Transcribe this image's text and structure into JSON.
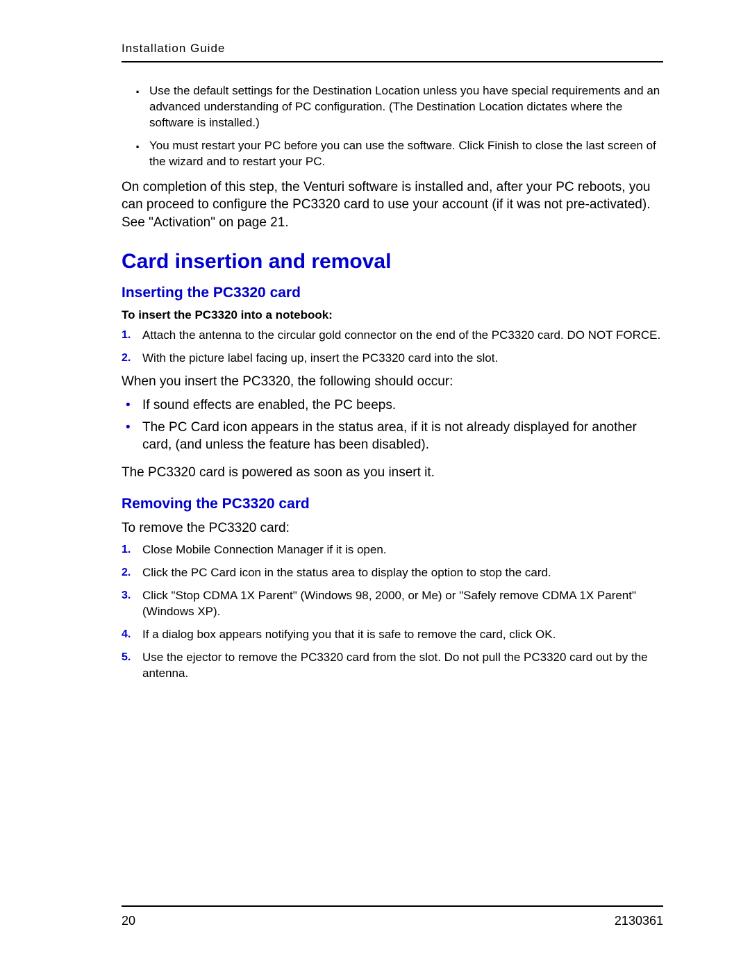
{
  "header": {
    "title": "Installation Guide"
  },
  "intro_bullets": [
    "Use the default settings for the Destination Location unless you have special requirements and an advanced understanding of PC configuration. (The Destination Location dictates where the software is installed.)",
    "You must restart your PC before you can use the software. Click Finish to close the last screen of the wizard and to restart your PC."
  ],
  "intro_paragraph": "On completion of this step, the Venturi software is installed and, after your PC reboots, you can proceed to configure the PC3320 card to use your account (if it was not pre-activated). See \"Activation\" on page 21.",
  "h1": "Card insertion and removal",
  "section_insert": {
    "heading": "Inserting the PC3320 card",
    "sub": "To insert the PC3320 into a notebook:",
    "steps": [
      "Attach the antenna to the circular gold connector on the end of the PC3320 card. DO NOT FORCE.",
      "With the picture label facing up, insert the PC3320 card into the slot."
    ],
    "after_p": "When you insert the PC3320, the following should occur:",
    "after_bullets": [
      "If sound effects are enabled, the PC beeps.",
      "The PC Card icon appears in the status area, if it is not already displayed for another card, (and unless the feature has been disabled)."
    ],
    "final_p": "The PC3320 card is powered as soon as you insert it."
  },
  "section_remove": {
    "heading": "Removing the PC3320 card",
    "intro": "To remove the PC3320 card:",
    "steps": [
      "Close Mobile Connection Manager if it is open.",
      "Click the PC Card icon in the status area to display the option to stop the card.",
      "Click \"Stop CDMA 1X Parent\" (Windows 98, 2000, or Me) or \"Safely remove CDMA 1X Parent\" (Windows XP).",
      "If a dialog box appears notifying you that it is safe to remove the card, click OK.",
      "Use the ejector to remove the PC3320 card from the slot. Do not pull the PC3320 card out by the antenna."
    ]
  },
  "footer": {
    "page": "20",
    "docnum": "2130361"
  },
  "colors": {
    "heading_blue": "#0000cc",
    "text_black": "#000000",
    "rule_black": "#000000",
    "background": "#ffffff"
  }
}
